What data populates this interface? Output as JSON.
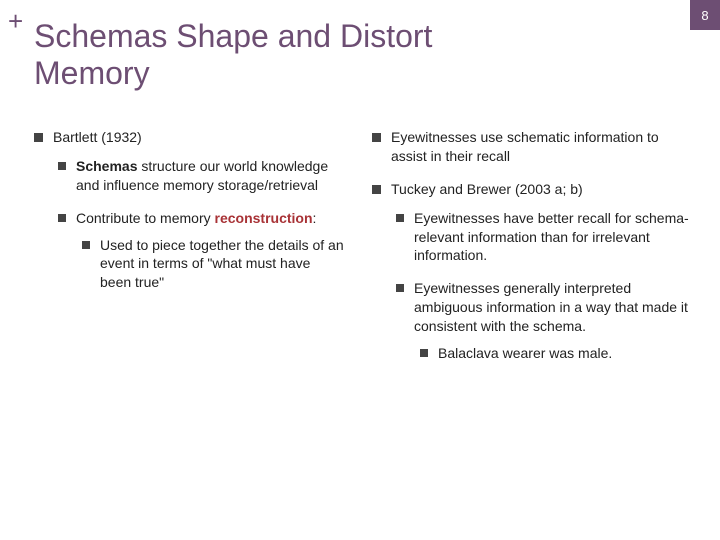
{
  "colors": {
    "topbar_bg": "#6d4e73",
    "topbar_text": "#ffffff",
    "plus": "#6d4e73",
    "title": "#6d4e73",
    "bullet": "#444444",
    "text": "#222222",
    "accent_red": "#a83236"
  },
  "page_number": "8",
  "plus_glyph": "+",
  "title_line1": "Schemas Shape and Distort",
  "title_line2": "Memory",
  "left": {
    "h1": "Bartlett (1932)",
    "p1_a": "Schemas",
    "p1_b": " structure our world knowledge and influence memory storage/retrieval",
    "p2_a": "Contribute to memory ",
    "p2_b": "reconstruction",
    "p2_c": ":",
    "p3": "Used to piece together the details of an event in terms of \"what must have been true\""
  },
  "right": {
    "p1": "Eyewitnesses use schematic information to assist in their recall",
    "p2": "Tuckey and Brewer (2003 a; b)",
    "p3": "Eyewitnesses have better recall for schema-relevant information than for irrelevant information.",
    "p4": "Eyewitnesses generally interpreted ambiguous information in a way that made it consistent with the schema.",
    "p5": "Balaclava wearer was male."
  }
}
